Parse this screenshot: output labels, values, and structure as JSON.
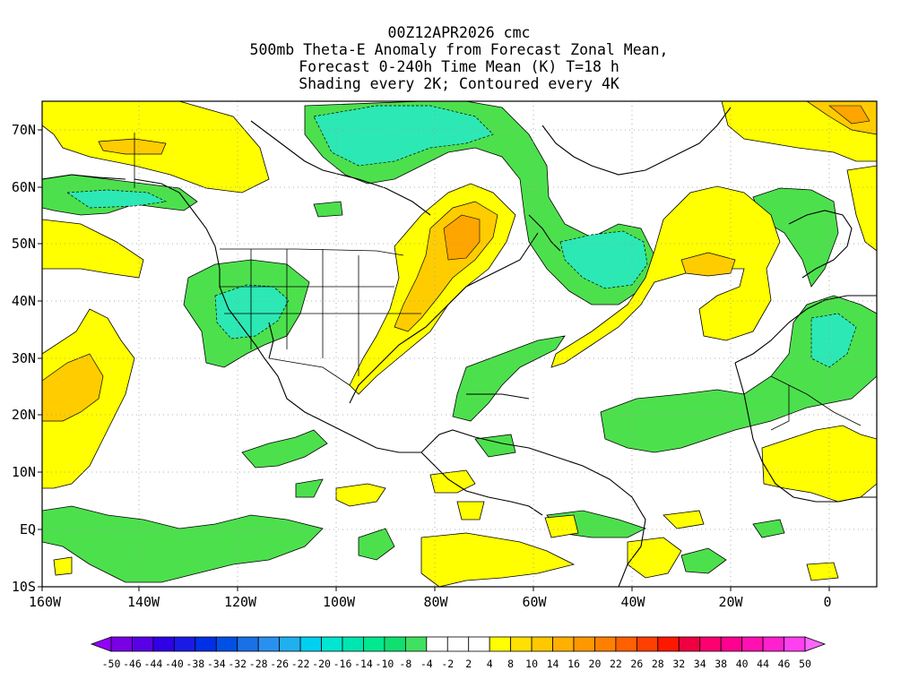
{
  "title": {
    "line1": "00Z12APR2026 cmc",
    "line2": "500mb Theta-E Anomaly from Forecast Zonal Mean,",
    "line3": "Forecast 0-240h Time Mean (K) T=18 h",
    "line4": "Shading every 2K; Contoured every 4K"
  },
  "axes": {
    "lat_labels": [
      "70N",
      "60N",
      "50N",
      "40N",
      "30N",
      "20N",
      "10N",
      "EQ",
      "10S"
    ],
    "lon_labels": [
      "160W",
      "140W",
      "120W",
      "100W",
      "80W",
      "60W",
      "40W",
      "20W",
      "0"
    ]
  },
  "colorbar": {
    "labels": [
      "-50",
      "-46",
      "-44",
      "-40",
      "-38",
      "-34",
      "-32",
      "-28",
      "-26",
      "-22",
      "-20",
      "-16",
      "-14",
      "-10",
      "-8",
      "-4",
      "-2",
      "2",
      "4",
      "8",
      "10",
      "14",
      "16",
      "20",
      "22",
      "26",
      "28",
      "32",
      "34",
      "38",
      "40",
      "44",
      "46",
      "50"
    ],
    "colors": [
      "#7a00e6",
      "#5a00e6",
      "#3000e6",
      "#1a1ae6",
      "#0030e6",
      "#0050e6",
      "#1a70e6",
      "#2a90f0",
      "#20b0f0",
      "#00d0f0",
      "#00e6d0",
      "#00e6b0",
      "#00e890",
      "#10e070",
      "#40e060",
      "#ffffff",
      "#ffffff",
      "#ffffff",
      "#ffff00",
      "#ffe000",
      "#ffc800",
      "#ffb000",
      "#ff9800",
      "#ff8000",
      "#ff6000",
      "#ff4000",
      "#ff1800",
      "#f00040",
      "#ff0070",
      "#ff0090",
      "#ff10b0",
      "#ff20d0",
      "#ff40f0"
    ]
  },
  "fill_colors": {
    "green": "#4de04d",
    "cyan": "#2ce8b4",
    "yellow": "#ffff00",
    "gold": "#ffcc00",
    "orange": "#ffa500"
  }
}
